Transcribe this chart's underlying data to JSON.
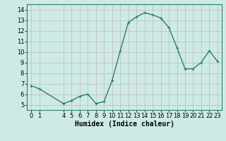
{
  "x": [
    0,
    1,
    4,
    5,
    6,
    7,
    8,
    9,
    10,
    11,
    12,
    13,
    14,
    15,
    16,
    17,
    18,
    19,
    20,
    21,
    22,
    23
  ],
  "y": [
    6.8,
    6.5,
    5.1,
    5.4,
    5.8,
    6.0,
    5.1,
    5.3,
    7.3,
    10.1,
    12.8,
    13.3,
    13.7,
    13.5,
    13.2,
    12.3,
    10.4,
    8.4,
    8.4,
    9.0,
    10.1,
    9.1
  ],
  "line_color": "#2e7d6e",
  "bg_color": "#ceeae7",
  "grid_color": "#c0b8b8",
  "xlabel": "Humidex (Indice chaleur)",
  "ylim": [
    4.5,
    14.5
  ],
  "xlim": [
    -0.5,
    23.5
  ],
  "yticks": [
    5,
    6,
    7,
    8,
    9,
    10,
    11,
    12,
    13,
    14
  ],
  "xticks": [
    0,
    1,
    4,
    5,
    6,
    7,
    8,
    9,
    10,
    11,
    12,
    13,
    14,
    15,
    16,
    17,
    18,
    19,
    20,
    21,
    22,
    23
  ],
  "marker": "+",
  "linewidth": 1.0,
  "markersize": 3,
  "markeredgewidth": 0.8,
  "xlabel_fontsize": 7,
  "tick_fontsize": 6
}
